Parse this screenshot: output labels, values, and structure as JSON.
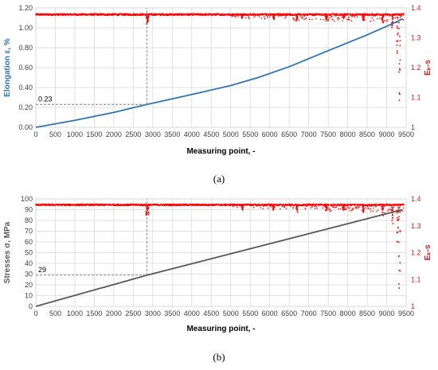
{
  "chart_data": [
    {
      "type": "line",
      "panel_label": "(a)",
      "xlabel": "Measuring point, -",
      "ylabel": "Elongation ε, %",
      "ylabel_right": "Eₖ-s",
      "xlim": [
        0,
        9500
      ],
      "ylim": [
        0,
        1.2
      ],
      "ylim_right": [
        1,
        1.4
      ],
      "x_ticks": [
        "0",
        "500",
        "1000",
        "1500",
        "2000",
        "2500",
        "3000",
        "3500",
        "4000",
        "4500",
        "5000",
        "5500",
        "6000",
        "6500",
        "7000",
        "7500",
        "8000",
        "8500",
        "9000",
        "9500"
      ],
      "y_ticks": [
        "0.00",
        "0.20",
        "0.40",
        "0.60",
        "0.80",
        "1.00",
        "1.20"
      ],
      "y_ticks_right": [
        "1",
        "1.1",
        "1.2",
        "1.3",
        "1.4"
      ],
      "grid": true,
      "annotation": {
        "text": "0.23",
        "x": 2850,
        "y": 0.23
      },
      "series": [
        {
          "axis": "left",
          "color": "#2e75b6",
          "x": [
            0,
            1000,
            2000,
            2850,
            4000,
            5000,
            5700,
            6500,
            7500,
            8500,
            9200,
            9400
          ],
          "y": [
            0,
            0.07,
            0.15,
            0.23,
            0.33,
            0.42,
            0.5,
            0.61,
            0.77,
            0.93,
            1.05,
            1.09
          ]
        },
        {
          "axis": "right",
          "color": "#ff0000",
          "baseline": 1.378,
          "dips": [
            {
              "x": 2850,
              "min": 1.335
            },
            {
              "x": 2880,
              "min": 1.35
            },
            {
              "x": 5300,
              "min": 1.365
            },
            {
              "x": 6100,
              "min": 1.36
            },
            {
              "x": 6700,
              "min": 1.355
            },
            {
              "x": 7450,
              "min": 1.36
            },
            {
              "x": 7900,
              "min": 1.362
            },
            {
              "x": 8400,
              "min": 1.355
            },
            {
              "x": 8900,
              "min": 1.35
            },
            {
              "x": 9150,
              "min": 1.33
            },
            {
              "x": 9280,
              "min": 1.2
            },
            {
              "x": 9330,
              "min": 1.02
            }
          ]
        }
      ]
    },
    {
      "type": "line",
      "panel_label": "(b)",
      "xlabel": "Measuring point, -",
      "ylabel": "Stresses σ, MPa",
      "ylabel_right": "Eₖ-s",
      "xlim": [
        0,
        9500
      ],
      "ylim": [
        0,
        100
      ],
      "ylim_right": [
        1,
        1.4
      ],
      "x_ticks": [
        "0",
        "500",
        "1000",
        "1500",
        "2000",
        "2500",
        "3000",
        "3500",
        "4000",
        "4500",
        "5000",
        "5500",
        "6000",
        "6500",
        "7000",
        "7500",
        "8000",
        "8500",
        "9000",
        "9500"
      ],
      "y_ticks": [
        "0",
        "10",
        "20",
        "30",
        "40",
        "50",
        "60",
        "70",
        "80",
        "90",
        "100"
      ],
      "y_ticks_right": [
        "1",
        "1.1",
        "1.2",
        "1.3",
        "1.4"
      ],
      "grid": true,
      "annotation": {
        "text": "29",
        "x": 2850,
        "y": 29
      },
      "series": [
        {
          "axis": "left",
          "color": "#595959",
          "x": [
            0,
            2850,
            9400
          ],
          "y": [
            0,
            29,
            90
          ]
        },
        {
          "axis": "right",
          "color": "#ff0000",
          "baseline": 1.378,
          "dips": [
            {
              "x": 2850,
              "min": 1.33
            },
            {
              "x": 2880,
              "min": 1.34
            },
            {
              "x": 5300,
              "min": 1.355
            },
            {
              "x": 6100,
              "min": 1.355
            },
            {
              "x": 6700,
              "min": 1.35
            },
            {
              "x": 7450,
              "min": 1.355
            },
            {
              "x": 7900,
              "min": 1.355
            },
            {
              "x": 8400,
              "min": 1.345
            },
            {
              "x": 8900,
              "min": 1.33
            },
            {
              "x": 9150,
              "min": 1.3
            },
            {
              "x": 9280,
              "min": 1.2
            },
            {
              "x": 9330,
              "min": 1.02
            }
          ]
        }
      ]
    }
  ]
}
